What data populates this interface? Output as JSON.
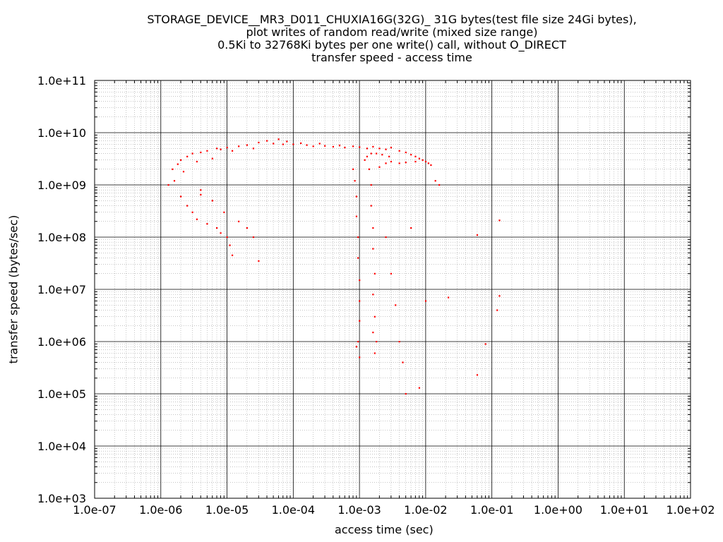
{
  "chart_data": {
    "type": "scatter",
    "title_lines": [
      "STORAGE_DEVICE__MR3_D011_CHUXIA16G(32G)_ 31G bytes(test file size 24Gi bytes),",
      "plot writes of random read/write (mixed size range)",
      "0.5Ki to 32768Ki bytes per one write() call, without O_DIRECT",
      "transfer speed - access time"
    ],
    "xlabel": "access time (sec)",
    "ylabel": "transfer speed (bytes/sec)",
    "xscale": "log",
    "yscale": "log",
    "xlim": [
      1e-07,
      100
    ],
    "ylim": [
      1000,
      100000000000.0
    ],
    "xticks": [
      "1.0e-07",
      "1.0e-06",
      "1.0e-05",
      "1.0e-04",
      "1.0e-03",
      "1.0e-02",
      "1.0e-01",
      "1.0e+00",
      "1.0e+01",
      "1.0e+02"
    ],
    "yticks": [
      "1.0e+03",
      "1.0e+04",
      "1.0e+05",
      "1.0e+06",
      "1.0e+07",
      "1.0e+08",
      "1.0e+09",
      "1.0e+10",
      "1.0e+11"
    ],
    "grid": true,
    "minor_grid": true,
    "marker_color": "#ff0000",
    "series": [
      {
        "points": [
          [
            1.3e-06,
            1000000000.0
          ],
          [
            1.5e-06,
            2000000000.0
          ],
          [
            1.6e-06,
            1200000000.0
          ],
          [
            1.8e-06,
            2500000000.0
          ],
          [
            2e-06,
            3000000000.0
          ],
          [
            2.2e-06,
            1800000000.0
          ],
          [
            2.5e-06,
            3500000000.0
          ],
          [
            3e-06,
            4000000000.0
          ],
          [
            3.5e-06,
            2800000000.0
          ],
          [
            4e-06,
            4200000000.0
          ],
          [
            5e-06,
            4500000000.0
          ],
          [
            6e-06,
            3200000000.0
          ],
          [
            7e-06,
            5000000000.0
          ],
          [
            8e-06,
            4800000000.0
          ],
          [
            1e-05,
            5200000000.0
          ],
          [
            1.2e-05,
            4500000000.0
          ],
          [
            1.5e-05,
            5500000000.0
          ],
          [
            2e-05,
            5800000000.0
          ],
          [
            2.5e-05,
            5000000000.0
          ],
          [
            3e-05,
            6500000000.0
          ],
          [
            4e-05,
            7000000000.0
          ],
          [
            5e-05,
            6200000000.0
          ],
          [
            6e-05,
            7500000000.0
          ],
          [
            7e-05,
            6000000000.0
          ],
          [
            8e-05,
            6800000000.0
          ],
          [
            0.0001,
            6000000000.0
          ],
          [
            0.00013,
            6300000000.0
          ],
          [
            0.00016,
            5800000000.0
          ],
          [
            0.0002,
            5500000000.0
          ],
          [
            0.00025,
            6200000000.0
          ],
          [
            0.0003,
            5600000000.0
          ],
          [
            0.0004,
            5400000000.0
          ],
          [
            0.0005,
            5700000000.0
          ],
          [
            0.0006,
            5200000000.0
          ],
          [
            0.0008,
            5500000000.0
          ],
          [
            0.001,
            5300000000.0
          ],
          [
            0.0013,
            5000000000.0
          ],
          [
            0.0016,
            5400000000.0
          ],
          [
            0.002,
            5000000000.0
          ],
          [
            0.0025,
            4800000000.0
          ],
          [
            0.003,
            5200000000.0
          ],
          [
            0.004,
            4500000000.0
          ],
          [
            0.005,
            4200000000.0
          ],
          [
            0.006,
            3800000000.0
          ],
          [
            0.007,
            3500000000.0
          ],
          [
            0.008,
            3200000000.0
          ],
          [
            0.009,
            3000000000.0
          ],
          [
            0.01,
            2800000000.0
          ],
          [
            0.011,
            2600000000.0
          ],
          [
            0.012,
            2400000000.0
          ],
          [
            0.014,
            1200000000.0
          ],
          [
            0.016,
            1000000000.0
          ],
          [
            2e-06,
            600000000.0
          ],
          [
            2.5e-06,
            400000000.0
          ],
          [
            3e-06,
            300000000.0
          ],
          [
            3.5e-06,
            220000000.0
          ],
          [
            4e-06,
            650000000.0
          ],
          [
            5e-06,
            180000000.0
          ],
          [
            6e-06,
            500000000.0
          ],
          [
            7e-06,
            150000000.0
          ],
          [
            8e-06,
            120000000.0
          ],
          [
            9e-06,
            300000000.0
          ],
          [
            1e-05,
            100000000.0
          ],
          [
            1.1e-05,
            70000000.0
          ],
          [
            1.2e-05,
            45000000.0
          ],
          [
            1.5e-05,
            200000000.0
          ],
          [
            2e-05,
            150000000.0
          ],
          [
            2.5e-05,
            100000000.0
          ],
          [
            3e-05,
            35000000.0
          ],
          [
            4e-06,
            800000000.0
          ],
          [
            0.0008,
            2000000000.0
          ],
          [
            0.00085,
            1200000000.0
          ],
          [
            0.0009,
            600000000.0
          ],
          [
            0.0009,
            250000000.0
          ],
          [
            0.00095,
            100000000.0
          ],
          [
            0.00095,
            40000000.0
          ],
          [
            0.001,
            15000000.0
          ],
          [
            0.001,
            6000000.0
          ],
          [
            0.001,
            2500000.0
          ],
          [
            0.00095,
            1000000.0
          ],
          [
            0.001,
            500000.0
          ],
          [
            0.0009,
            800000.0
          ],
          [
            0.0012,
            3000000000.0
          ],
          [
            0.0013,
            3500000000.0
          ],
          [
            0.0015,
            4000000000.0
          ],
          [
            0.0018,
            4000000000.0
          ],
          [
            0.0022,
            3800000000.0
          ],
          [
            0.0028,
            3500000000.0
          ],
          [
            0.0014,
            2000000000.0
          ],
          [
            0.0015,
            1000000000.0
          ],
          [
            0.0015,
            400000000.0
          ],
          [
            0.0016,
            150000000.0
          ],
          [
            0.0016,
            60000000.0
          ],
          [
            0.0017,
            20000000.0
          ],
          [
            0.0016,
            8000000.0
          ],
          [
            0.0017,
            3000000.0
          ],
          [
            0.0016,
            1500000.0
          ],
          [
            0.0018,
            1000000.0
          ],
          [
            0.0017,
            600000.0
          ],
          [
            0.002,
            2200000000.0
          ],
          [
            0.0025,
            2600000000.0
          ],
          [
            0.003,
            2800000000.0
          ],
          [
            0.004,
            2600000000.0
          ],
          [
            0.005,
            2700000000.0
          ],
          [
            0.007,
            2800000000.0
          ],
          [
            0.0025,
            100000000.0
          ],
          [
            0.003,
            20000000.0
          ],
          [
            0.0035,
            5000000.0
          ],
          [
            0.004,
            1000000.0
          ],
          [
            0.0045,
            400000.0
          ],
          [
            0.005,
            100000.0
          ],
          [
            0.006,
            150000000.0
          ],
          [
            0.008,
            130000.0
          ],
          [
            0.01,
            6000000.0
          ],
          [
            0.022,
            7000000.0
          ],
          [
            0.06,
            110000000.0
          ],
          [
            0.13,
            210000000.0
          ],
          [
            0.12,
            4000000.0
          ],
          [
            0.13,
            7500000.0
          ],
          [
            0.08,
            900000.0
          ],
          [
            0.06,
            230000.0
          ]
        ]
      }
    ]
  }
}
